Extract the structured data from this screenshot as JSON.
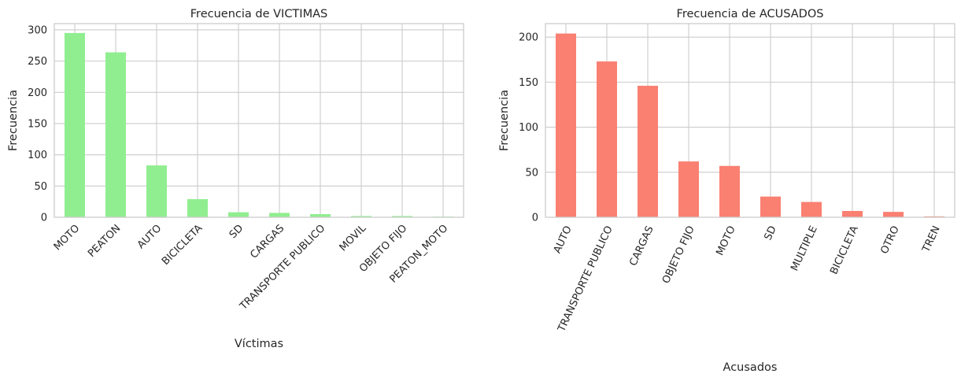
{
  "chart_data": [
    {
      "type": "bar",
      "title": "Frecuencia de VICTIMAS",
      "xlabel": "Víctimas",
      "ylabel": "Frecuencia",
      "color": "#90ee90",
      "grid": true,
      "ylim": [
        0,
        310
      ],
      "yticks": [
        0,
        50,
        100,
        150,
        200,
        250,
        300
      ],
      "categories": [
        "MOTO",
        "PEATON",
        "AUTO",
        "BICICLETA",
        "SD",
        "CARGAS",
        "TRANSPORTE PUBLICO",
        "MOVIL",
        "OBJETO FIJO",
        "PEATON_MOTO"
      ],
      "values": [
        295,
        264,
        83,
        29,
        8,
        7,
        5,
        2,
        2,
        1
      ]
    },
    {
      "type": "bar",
      "title": "Frecuencia de ACUSADOS",
      "xlabel": "Acusados",
      "ylabel": "Frecuencia",
      "color": "#fa8072",
      "grid": true,
      "ylim": [
        0,
        215
      ],
      "yticks": [
        0,
        50,
        100,
        150,
        200
      ],
      "categories": [
        "AUTO",
        "TRANSPORTE PUBLICO",
        "CARGAS",
        "OBJETO FIJO",
        "MOTO",
        "SD",
        "MULTIPLE",
        "BICICLETA",
        "OTRO",
        "TREN"
      ],
      "values": [
        204,
        173,
        146,
        62,
        57,
        23,
        17,
        7,
        6,
        1
      ]
    }
  ]
}
